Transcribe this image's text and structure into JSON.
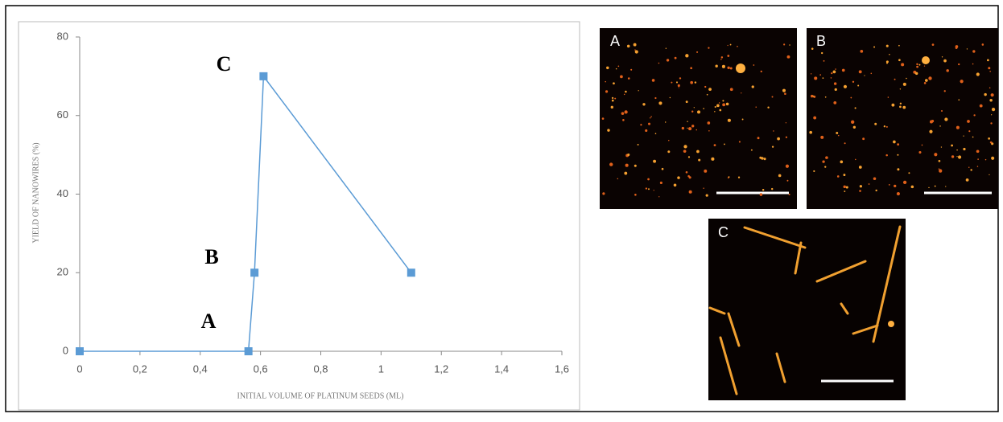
{
  "chart_data": {
    "type": "line",
    "x_label": "INITIAL VOLUME OF PLATINUM SEEDS (ML)",
    "y_label": "YIELD OF NANOWIRES (%)",
    "x": [
      0,
      0.56,
      0.58,
      0.61,
      1.1
    ],
    "values": [
      0,
      0,
      20,
      70,
      20
    ],
    "color": "#5b9bd5",
    "xlim": [
      0,
      1.6
    ],
    "ylim": [
      0,
      80
    ],
    "xticks": [
      0,
      {
        "value": 0.2,
        "label": "0,2"
      },
      {
        "value": 0.4,
        "label": "0,4"
      },
      {
        "value": 0.6,
        "label": "0,6"
      },
      {
        "value": 0.8,
        "label": "0,8"
      },
      1,
      {
        "value": 1.2,
        "label": "1,2"
      },
      {
        "value": 1.4,
        "label": "1,4"
      },
      {
        "value": 1.6,
        "label": "1,6"
      }
    ],
    "yticks": [
      0,
      20,
      40,
      60,
      80
    ],
    "grid": false,
    "annotations": [
      "A",
      "B",
      "C"
    ]
  },
  "panels": [
    {
      "label": "A"
    },
    {
      "label": "B"
    },
    {
      "label": "C"
    }
  ]
}
